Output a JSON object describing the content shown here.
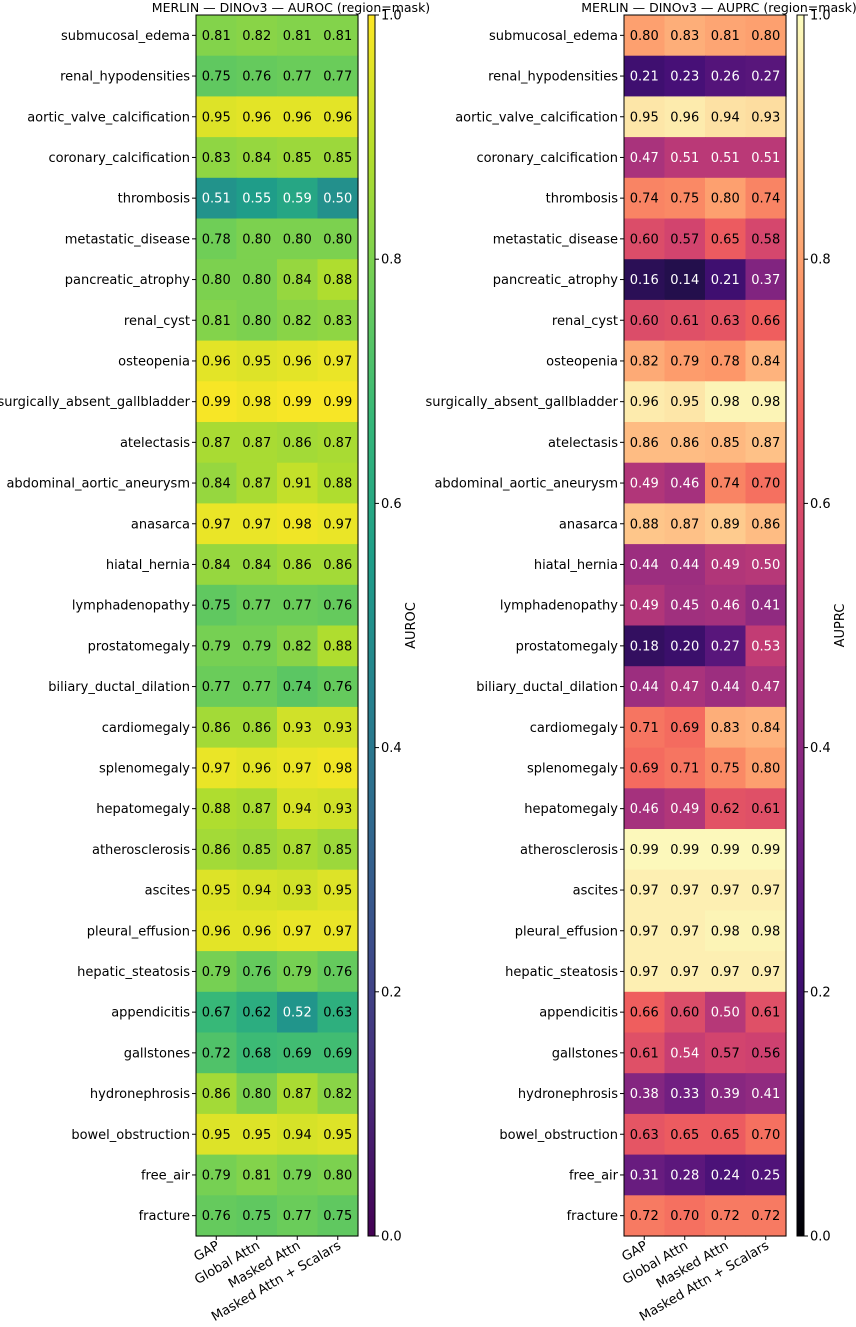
{
  "chart_data": [
    {
      "type": "heatmap",
      "id": "auroc",
      "title": "MERLIN — DINOv3 — AUROC (region=mask)",
      "colormap": "viridis",
      "colorbar_label": "AUROC",
      "colorbar_ticks": [
        "0.0",
        "0.2",
        "0.4",
        "0.6",
        "0.8",
        "1.0"
      ],
      "vlim": [
        0,
        1
      ],
      "columns": [
        "GAP",
        "Global Attn",
        "Masked Attn",
        "Masked Attn + Scalars"
      ],
      "rows": [
        "submucosal_edema",
        "renal_hypodensities",
        "aortic_valve_calcification",
        "coronary_calcification",
        "thrombosis",
        "metastatic_disease",
        "pancreatic_atrophy",
        "renal_cyst",
        "osteopenia",
        "surgically_absent_gallbladder",
        "atelectasis",
        "abdominal_aortic_aneurysm",
        "anasarca",
        "hiatal_hernia",
        "lymphadenopathy",
        "prostatomegaly",
        "biliary_ductal_dilation",
        "cardiomegaly",
        "splenomegaly",
        "hepatomegaly",
        "atherosclerosis",
        "ascites",
        "pleural_effusion",
        "hepatic_steatosis",
        "appendicitis",
        "gallstones",
        "hydronephrosis",
        "bowel_obstruction",
        "free_air",
        "fracture"
      ],
      "values": [
        [
          "0.81",
          "0.82",
          "0.81",
          "0.81"
        ],
        [
          "0.75",
          "0.76",
          "0.77",
          "0.77"
        ],
        [
          "0.95",
          "0.96",
          "0.96",
          "0.96"
        ],
        [
          "0.83",
          "0.84",
          "0.85",
          "0.85"
        ],
        [
          "0.51",
          "0.55",
          "0.59",
          "0.50"
        ],
        [
          "0.78",
          "0.80",
          "0.80",
          "0.80"
        ],
        [
          "0.80",
          "0.80",
          "0.84",
          "0.88"
        ],
        [
          "0.81",
          "0.80",
          "0.82",
          "0.83"
        ],
        [
          "0.96",
          "0.95",
          "0.96",
          "0.97"
        ],
        [
          "0.99",
          "0.98",
          "0.99",
          "0.99"
        ],
        [
          "0.87",
          "0.87",
          "0.86",
          "0.87"
        ],
        [
          "0.84",
          "0.87",
          "0.91",
          "0.88"
        ],
        [
          "0.97",
          "0.97",
          "0.98",
          "0.97"
        ],
        [
          "0.84",
          "0.84",
          "0.86",
          "0.86"
        ],
        [
          "0.75",
          "0.77",
          "0.77",
          "0.76"
        ],
        [
          "0.79",
          "0.79",
          "0.82",
          "0.88"
        ],
        [
          "0.77",
          "0.77",
          "0.74",
          "0.76"
        ],
        [
          "0.86",
          "0.86",
          "0.93",
          "0.93"
        ],
        [
          "0.97",
          "0.96",
          "0.97",
          "0.98"
        ],
        [
          "0.88",
          "0.87",
          "0.94",
          "0.93"
        ],
        [
          "0.86",
          "0.85",
          "0.87",
          "0.85"
        ],
        [
          "0.95",
          "0.94",
          "0.93",
          "0.95"
        ],
        [
          "0.96",
          "0.96",
          "0.97",
          "0.97"
        ],
        [
          "0.79",
          "0.76",
          "0.79",
          "0.76"
        ],
        [
          "0.67",
          "0.62",
          "0.52",
          "0.63"
        ],
        [
          "0.72",
          "0.68",
          "0.69",
          "0.69"
        ],
        [
          "0.86",
          "0.80",
          "0.87",
          "0.82"
        ],
        [
          "0.95",
          "0.95",
          "0.94",
          "0.95"
        ],
        [
          "0.79",
          "0.81",
          "0.79",
          "0.80"
        ],
        [
          "0.76",
          "0.75",
          "0.77",
          "0.75"
        ]
      ]
    },
    {
      "type": "heatmap",
      "id": "auprc",
      "title": "MERLIN — DINOv3 — AUPRC (region=mask)",
      "colormap": "magma",
      "colorbar_label": "AUPRC",
      "colorbar_ticks": [
        "0.0",
        "0.2",
        "0.4",
        "0.6",
        "0.8",
        "1.0"
      ],
      "vlim": [
        0,
        1
      ],
      "columns": [
        "GAP",
        "Global Attn",
        "Masked Attn",
        "Masked Attn + Scalars"
      ],
      "rows": [
        "submucosal_edema",
        "renal_hypodensities",
        "aortic_valve_calcification",
        "coronary_calcification",
        "thrombosis",
        "metastatic_disease",
        "pancreatic_atrophy",
        "renal_cyst",
        "osteopenia",
        "surgically_absent_gallbladder",
        "atelectasis",
        "abdominal_aortic_aneurysm",
        "anasarca",
        "hiatal_hernia",
        "lymphadenopathy",
        "prostatomegaly",
        "biliary_ductal_dilation",
        "cardiomegaly",
        "splenomegaly",
        "hepatomegaly",
        "atherosclerosis",
        "ascites",
        "pleural_effusion",
        "hepatic_steatosis",
        "appendicitis",
        "gallstones",
        "hydronephrosis",
        "bowel_obstruction",
        "free_air",
        "fracture"
      ],
      "values": [
        [
          "0.80",
          "0.83",
          "0.81",
          "0.80"
        ],
        [
          "0.21",
          "0.23",
          "0.26",
          "0.27"
        ],
        [
          "0.95",
          "0.96",
          "0.94",
          "0.93"
        ],
        [
          "0.47",
          "0.51",
          "0.51",
          "0.51"
        ],
        [
          "0.74",
          "0.75",
          "0.80",
          "0.74"
        ],
        [
          "0.60",
          "0.57",
          "0.65",
          "0.58"
        ],
        [
          "0.16",
          "0.14",
          "0.21",
          "0.37"
        ],
        [
          "0.60",
          "0.61",
          "0.63",
          "0.66"
        ],
        [
          "0.82",
          "0.79",
          "0.78",
          "0.84"
        ],
        [
          "0.96",
          "0.95",
          "0.98",
          "0.98"
        ],
        [
          "0.86",
          "0.86",
          "0.85",
          "0.87"
        ],
        [
          "0.49",
          "0.46",
          "0.74",
          "0.70"
        ],
        [
          "0.88",
          "0.87",
          "0.89",
          "0.86"
        ],
        [
          "0.44",
          "0.44",
          "0.49",
          "0.50"
        ],
        [
          "0.49",
          "0.45",
          "0.46",
          "0.41"
        ],
        [
          "0.18",
          "0.20",
          "0.27",
          "0.53"
        ],
        [
          "0.44",
          "0.47",
          "0.44",
          "0.47"
        ],
        [
          "0.71",
          "0.69",
          "0.83",
          "0.84"
        ],
        [
          "0.69",
          "0.71",
          "0.75",
          "0.80"
        ],
        [
          "0.46",
          "0.49",
          "0.62",
          "0.61"
        ],
        [
          "0.99",
          "0.99",
          "0.99",
          "0.99"
        ],
        [
          "0.97",
          "0.97",
          "0.97",
          "0.97"
        ],
        [
          "0.97",
          "0.97",
          "0.98",
          "0.98"
        ],
        [
          "0.97",
          "0.97",
          "0.97",
          "0.97"
        ],
        [
          "0.66",
          "0.60",
          "0.50",
          "0.61"
        ],
        [
          "0.61",
          "0.54",
          "0.57",
          "0.56"
        ],
        [
          "0.38",
          "0.33",
          "0.39",
          "0.41"
        ],
        [
          "0.63",
          "0.65",
          "0.65",
          "0.70"
        ],
        [
          "0.31",
          "0.28",
          "0.24",
          "0.25"
        ],
        [
          "0.72",
          "0.70",
          "0.72",
          "0.72"
        ]
      ]
    }
  ]
}
